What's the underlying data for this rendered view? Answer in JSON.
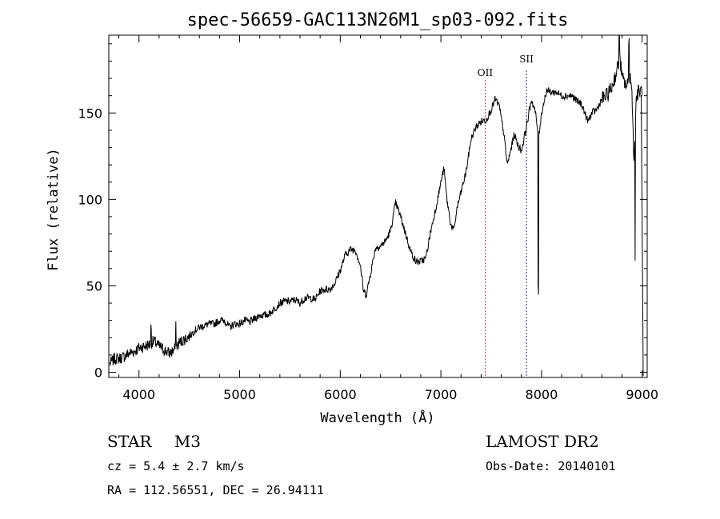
{
  "chart_data": {
    "type": "line",
    "title": "spec-56659-GAC113N26M1_sp03-092.fits",
    "xlabel": "Wavelength (Å)",
    "ylabel": "Flux (relative)",
    "xlim": [
      3700,
      9050
    ],
    "ylim": [
      -3,
      195
    ],
    "xticks": [
      4000,
      5000,
      6000,
      7000,
      8000,
      9000
    ],
    "yticks": [
      0,
      50,
      100,
      150
    ],
    "xtick_labels": [
      "4000",
      "5000",
      "6000",
      "7000",
      "8000",
      "9000"
    ],
    "ytick_labels": [
      "0",
      "50",
      "100",
      "150"
    ],
    "grid": false,
    "line_color": "#000000",
    "series": [
      {
        "x": [
          3710,
          3760,
          3800,
          3850,
          3900,
          3950,
          4000,
          4050,
          4100,
          4150,
          4200,
          4250,
          4300,
          4330,
          4360,
          4400,
          4450,
          4500,
          4550,
          4600,
          4650,
          4700,
          4750,
          4800,
          4850,
          4900,
          4950,
          5000,
          5050,
          5100,
          5150,
          5200,
          5250,
          5300,
          5350,
          5400,
          5450,
          5500,
          5550,
          5600,
          5650,
          5700,
          5750,
          5800,
          5850,
          5900,
          5950,
          6000,
          6050,
          6100,
          6150,
          6200,
          6230,
          6260,
          6300,
          6350,
          6400,
          6450,
          6500,
          6550,
          6600,
          6650,
          6700,
          6750,
          6800,
          6850,
          6900,
          6950,
          7000,
          7030,
          7060,
          7100,
          7130,
          7160,
          7200,
          7250,
          7300,
          7350,
          7400,
          7450,
          7500,
          7540,
          7580,
          7620,
          7660,
          7700,
          7730,
          7760,
          7800,
          7850,
          7900,
          7940,
          7970,
          8000,
          8050,
          8100,
          8150,
          8200,
          8250,
          8300,
          8350,
          8400,
          8430,
          8460,
          8500,
          8550,
          8600,
          8650,
          8700,
          8750,
          8780,
          8800,
          8850,
          8880,
          8900,
          8920,
          8940,
          8960,
          9000
        ],
        "y": [
          5,
          8,
          8,
          9,
          11,
          12,
          14,
          15,
          16,
          18,
          15,
          13,
          11,
          12,
          14,
          17,
          19,
          21,
          24,
          26,
          27,
          28,
          28,
          30,
          30,
          26,
          28,
          28,
          30,
          29,
          31,
          33,
          33,
          34,
          37,
          40,
          41,
          41,
          42,
          40,
          43,
          43,
          42,
          47,
          48,
          48,
          52,
          59,
          68,
          71,
          71,
          62,
          47,
          45,
          57,
          72,
          73,
          76,
          82,
          98,
          90,
          80,
          70,
          64,
          64,
          66,
          82,
          95,
          110,
          118,
          100,
          85,
          82,
          95,
          104,
          116,
          135,
          142,
          145,
          146,
          152,
          158,
          154,
          140,
          120,
          130,
          138,
          132,
          128,
          142,
          158,
          150,
          136,
          150,
          163,
          162,
          162,
          160,
          160,
          160,
          157,
          155,
          150,
          145,
          150,
          152,
          158,
          160,
          165,
          175,
          182,
          170,
          165,
          172,
          160,
          120,
          158,
          162,
          163
        ]
      }
    ],
    "emission_lines": [
      {
        "label": "OII",
        "wavelength": 7440,
        "color": "#b04a4a"
      },
      {
        "label": "SII",
        "wavelength": 7850,
        "color": "#303060"
      }
    ]
  },
  "info": {
    "class_label": "STAR",
    "subclass_label": "M3",
    "cz": "cz = 5.4 ± 2.7 km/s",
    "radec": "RA = 112.56551, DEC =  26.94111",
    "survey": "LAMOST DR2",
    "obs_date": "Obs-Date: 20140101"
  }
}
